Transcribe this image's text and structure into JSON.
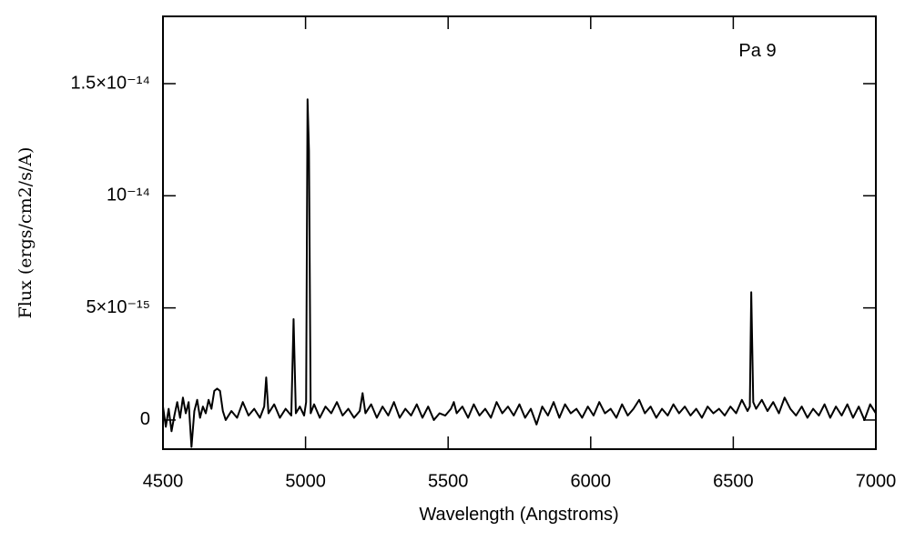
{
  "chart_data": {
    "type": "line",
    "xlabel": "Wavelength (Angstroms)",
    "ylabel": "Flux (ergs/cm2/s/A)",
    "annotation": "Pa 9",
    "color": "#000000",
    "xlim": [
      4500,
      7000
    ],
    "xticks": [
      4500,
      5000,
      5500,
      6000,
      6500,
      7000
    ],
    "ylim": [
      -1.3e-15,
      1.8e-14
    ],
    "yticks": [
      0,
      {
        "value": 5e-15,
        "label": "5×10⁻¹⁵"
      },
      {
        "value": 1e-14,
        "label": "10⁻¹⁴"
      },
      {
        "value": 1.5e-14,
        "label": "1.5×10⁻¹⁴"
      }
    ],
    "x": [
      4500,
      4510,
      4520,
      4530,
      4540,
      4550,
      4560,
      4570,
      4580,
      4590,
      4600,
      4610,
      4620,
      4630,
      4640,
      4650,
      4660,
      4670,
      4680,
      4690,
      4700,
      4710,
      4720,
      4740,
      4760,
      4780,
      4800,
      4820,
      4840,
      4855,
      4862,
      4870,
      4890,
      4910,
      4930,
      4950,
      4958,
      4966,
      4980,
      4995,
      5002,
      5007,
      5012,
      5018,
      5030,
      5050,
      5070,
      5090,
      5110,
      5130,
      5150,
      5170,
      5190,
      5200,
      5210,
      5230,
      5250,
      5270,
      5290,
      5310,
      5330,
      5350,
      5370,
      5390,
      5410,
      5430,
      5450,
      5470,
      5490,
      5510,
      5520,
      5530,
      5550,
      5570,
      5590,
      5610,
      5630,
      5650,
      5670,
      5690,
      5710,
      5730,
      5750,
      5770,
      5790,
      5810,
      5830,
      5850,
      5870,
      5890,
      5910,
      5930,
      5950,
      5970,
      5990,
      6010,
      6030,
      6050,
      6070,
      6090,
      6110,
      6130,
      6150,
      6170,
      6190,
      6210,
      6230,
      6250,
      6270,
      6290,
      6310,
      6330,
      6350,
      6370,
      6390,
      6410,
      6430,
      6450,
      6470,
      6490,
      6510,
      6530,
      6550,
      6558,
      6563,
      6570,
      6580,
      6600,
      6620,
      6640,
      6660,
      6680,
      6700,
      6720,
      6740,
      6760,
      6780,
      6800,
      6820,
      6840,
      6860,
      6880,
      6900,
      6920,
      6940,
      6960,
      6980,
      7000
    ],
    "values": [
      6e-16,
      -3e-16,
      5e-16,
      -5e-16,
      2e-16,
      8e-16,
      1e-16,
      1e-15,
      3e-16,
      8e-16,
      -1.2e-15,
      4e-16,
      9e-16,
      1e-16,
      6e-16,
      3e-16,
      9e-16,
      5e-16,
      1.3e-15,
      1.4e-15,
      1.3e-15,
      4e-16,
      0,
      4e-16,
      1e-16,
      8e-16,
      2e-16,
      5e-16,
      1e-16,
      6e-16,
      1.9e-15,
      3e-16,
      7e-16,
      1e-16,
      5e-16,
      2e-16,
      4.5e-15,
      3e-16,
      6e-16,
      2e-16,
      8e-16,
      1.43e-14,
      1.2e-14,
      3e-16,
      7e-16,
      1e-16,
      6e-16,
      3e-16,
      8e-16,
      2e-16,
      5e-16,
      1e-16,
      4e-16,
      1.2e-15,
      3e-16,
      7e-16,
      1e-16,
      6e-16,
      2e-16,
      8e-16,
      1e-16,
      5e-16,
      2e-16,
      7e-16,
      1e-16,
      6e-16,
      0,
      3e-16,
      2e-16,
      5e-16,
      8e-16,
      3e-16,
      6e-16,
      1e-16,
      7e-16,
      2e-16,
      5e-16,
      1e-16,
      8e-16,
      3e-16,
      6e-16,
      2e-16,
      7e-16,
      1e-16,
      5e-16,
      -2e-16,
      6e-16,
      2e-16,
      8e-16,
      1e-16,
      7e-16,
      3e-16,
      5e-16,
      1e-16,
      6e-16,
      2e-16,
      8e-16,
      3e-16,
      5e-16,
      1e-16,
      7e-16,
      2e-16,
      5e-16,
      9e-16,
      3e-16,
      6e-16,
      1e-16,
      5e-16,
      2e-16,
      7e-16,
      3e-16,
      6e-16,
      2e-16,
      5e-16,
      1e-16,
      6e-16,
      3e-16,
      5e-16,
      2e-16,
      6e-16,
      3e-16,
      9e-16,
      4e-16,
      6e-16,
      5.7e-15,
      8e-16,
      5e-16,
      9e-16,
      4e-16,
      8e-16,
      3e-16,
      1e-15,
      5e-16,
      2e-16,
      6e-16,
      1e-16,
      5e-16,
      2e-16,
      7e-16,
      1e-16,
      6e-16,
      2e-16,
      7e-16,
      1e-16,
      6e-16,
      0,
      7e-16,
      3e-16
    ]
  }
}
